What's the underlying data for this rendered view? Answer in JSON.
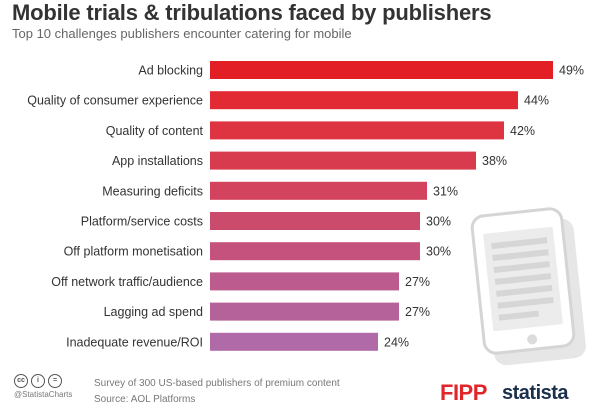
{
  "chart_data": {
    "type": "bar",
    "orientation": "horizontal",
    "title": "Mobile trials & tribulations faced by publishers",
    "subtitle": "Top 10 challenges publishers encounter catering for mobile",
    "categories": [
      "Ad blocking",
      "Quality of consumer experience",
      "Quality of content",
      "App installations",
      "Measuring deficits",
      "Platform/service costs",
      "Off platform monetisation",
      "Off network traffic/audience",
      "Lagging ad spend",
      "Inadequate revenue/ROI"
    ],
    "values": [
      49,
      44,
      42,
      38,
      31,
      30,
      30,
      27,
      27,
      24
    ],
    "value_labels": [
      "49%",
      "44%",
      "42%",
      "38%",
      "31%",
      "30%",
      "30%",
      "27%",
      "27%",
      "24%"
    ],
    "bar_colors": [
      "#e31f26",
      "#e12a33",
      "#de3340",
      "#d93b4e",
      "#d3435d",
      "#cb4b6d",
      "#c4527d",
      "#bc5b8d",
      "#b6629a",
      "#b06aa8"
    ],
    "xlim": [
      0,
      50
    ],
    "grid": false,
    "legend": "none"
  },
  "footer": {
    "cc_icons": [
      "cc-icon",
      "attribution-icon",
      "no-derivatives-icon"
    ],
    "cc_glyphs": [
      "cc",
      "i",
      "="
    ],
    "handle": "@StatistaCharts",
    "survey": "Survey of 300 US-based publishers of premium content",
    "source": "Source: AOL Platforms"
  },
  "logos": {
    "fipp": "FIPP",
    "statista": "statista"
  },
  "decoration": {
    "icon": "smartphone-icon"
  }
}
